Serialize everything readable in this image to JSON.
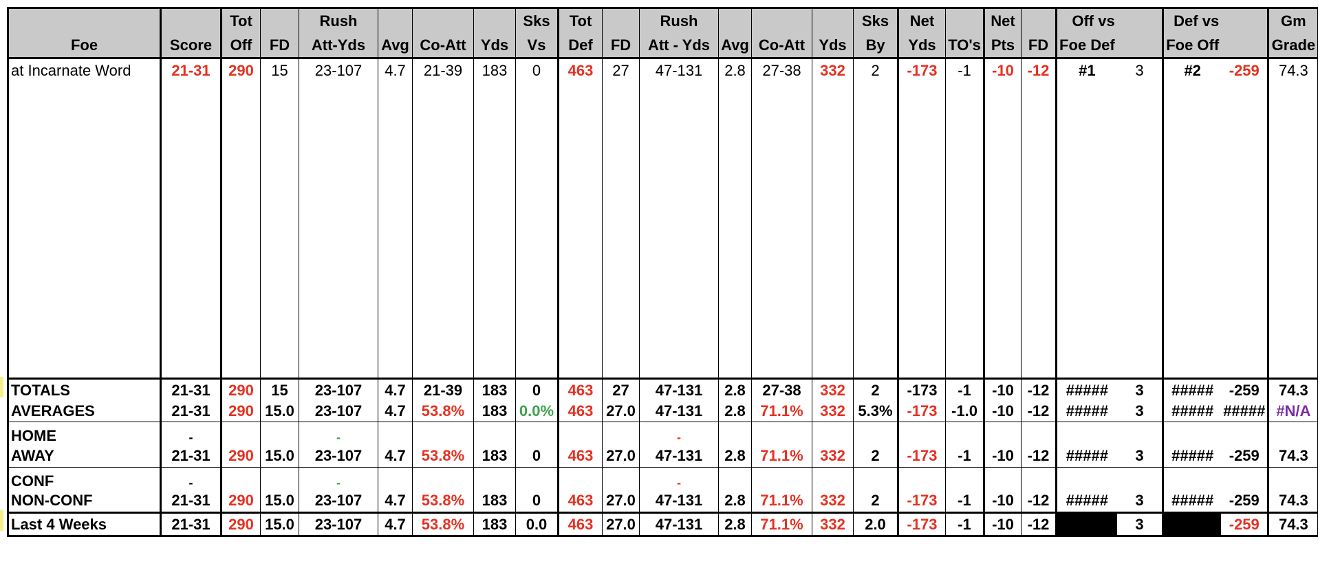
{
  "colors": {
    "header_bg": "#c9c9c9",
    "red": "#e53122",
    "green": "#3fa34d",
    "purple": "#7b2fa0"
  },
  "header": {
    "row1": [
      "",
      "",
      "Tot",
      "",
      "Rush",
      "",
      "",
      "",
      "Sks",
      "Tot",
      "",
      "Rush",
      "",
      "",
      "",
      "Sks",
      "Net",
      "",
      "Net",
      "",
      "Off vs",
      "",
      "Def vs",
      "",
      "Gm"
    ],
    "row2": [
      "Foe",
      "Score",
      "Off",
      "FD",
      "Att-Yds",
      "Avg",
      "Co-Att",
      "Yds",
      "Vs",
      "Def",
      "FD",
      "Att - Yds",
      "Avg",
      "Co-Att",
      "Yds",
      "By",
      "Yds",
      "TO's",
      "Pts",
      "FD",
      "Foe Def",
      "",
      "Foe Off",
      "",
      "Grade"
    ]
  },
  "game": {
    "foe": "at Incarnate Word",
    "score": "21-31",
    "tot_off": "290",
    "fd": "15",
    "rush": "23-107",
    "avg": "4.7",
    "co_att": "21-39",
    "yds": "183",
    "sks_vs": "0",
    "tot_def": "463",
    "def_fd": "27",
    "def_rush": "47-131",
    "def_avg": "2.8",
    "def_co_att": "27-38",
    "def_yds": "332",
    "sks_by": "2",
    "net_yds": "-173",
    "net_to": "-1",
    "net_pts": "-10",
    "net_fd": "-12",
    "off_rank": "#1",
    "off_val": "3",
    "def_rank": "#2",
    "def_val": "-259",
    "grade": "74.3"
  },
  "totals": [
    "TOTALS",
    "21-31",
    "290",
    "15",
    "23-107",
    "4.7",
    "21-39",
    "183",
    "0",
    "463",
    "27",
    "47-131",
    "2.8",
    "27-38",
    "332",
    "2",
    "-173",
    "-1",
    "-10",
    "-12",
    "#####",
    "3",
    "#####",
    "-259",
    "74.3"
  ],
  "averages": [
    "AVERAGES",
    "21-31",
    "290",
    "15.0",
    "23-107",
    "4.7",
    "53.8%",
    "183",
    "0.0%",
    "463",
    "27.0",
    "47-131",
    "2.8",
    "71.1%",
    "332",
    "5.3%",
    "-173",
    "-1.0",
    "-10",
    "-12",
    "#####",
    "3",
    "#####",
    "#####",
    "#N/A"
  ],
  "home": [
    "HOME",
    "-",
    "",
    "",
    "-",
    "",
    "",
    "",
    "",
    "",
    "",
    "-",
    "",
    "",
    "",
    "",
    "",
    "",
    "",
    "",
    "",
    "",
    "",
    "",
    ""
  ],
  "away": [
    "AWAY",
    "21-31",
    "290",
    "15.0",
    "23-107",
    "4.7",
    "53.8%",
    "183",
    "0",
    "463",
    "27.0",
    "47-131",
    "2.8",
    "71.1%",
    "332",
    "2",
    "-173",
    "-1",
    "-10",
    "-12",
    "#####",
    "3",
    "#####",
    "-259",
    "74.3"
  ],
  "conf": [
    "CONF",
    "-",
    "",
    "",
    "-",
    "",
    "",
    "",
    "",
    "",
    "",
    "-",
    "",
    "",
    "",
    "",
    "",
    "",
    "",
    "",
    "",
    "",
    "",
    "",
    ""
  ],
  "nonconf": [
    "NON-CONF",
    "21-31",
    "290",
    "15.0",
    "23-107",
    "4.7",
    "53.8%",
    "183",
    "0",
    "463",
    "27.0",
    "47-131",
    "2.8",
    "71.1%",
    "332",
    "2",
    "-173",
    "-1",
    "-10",
    "-12",
    "#####",
    "3",
    "#####",
    "-259",
    "74.3"
  ],
  "last4": [
    "Last 4 Weeks",
    "21-31",
    "290",
    "15.0",
    "23-107",
    "4.7",
    "53.8%",
    "183",
    "0.0",
    "463",
    "27.0",
    "47-131",
    "2.8",
    "71.1%",
    "332",
    "2.0",
    "-173",
    "-1",
    "-10",
    "-12",
    "",
    "3",
    "",
    "-259",
    "74.3"
  ]
}
